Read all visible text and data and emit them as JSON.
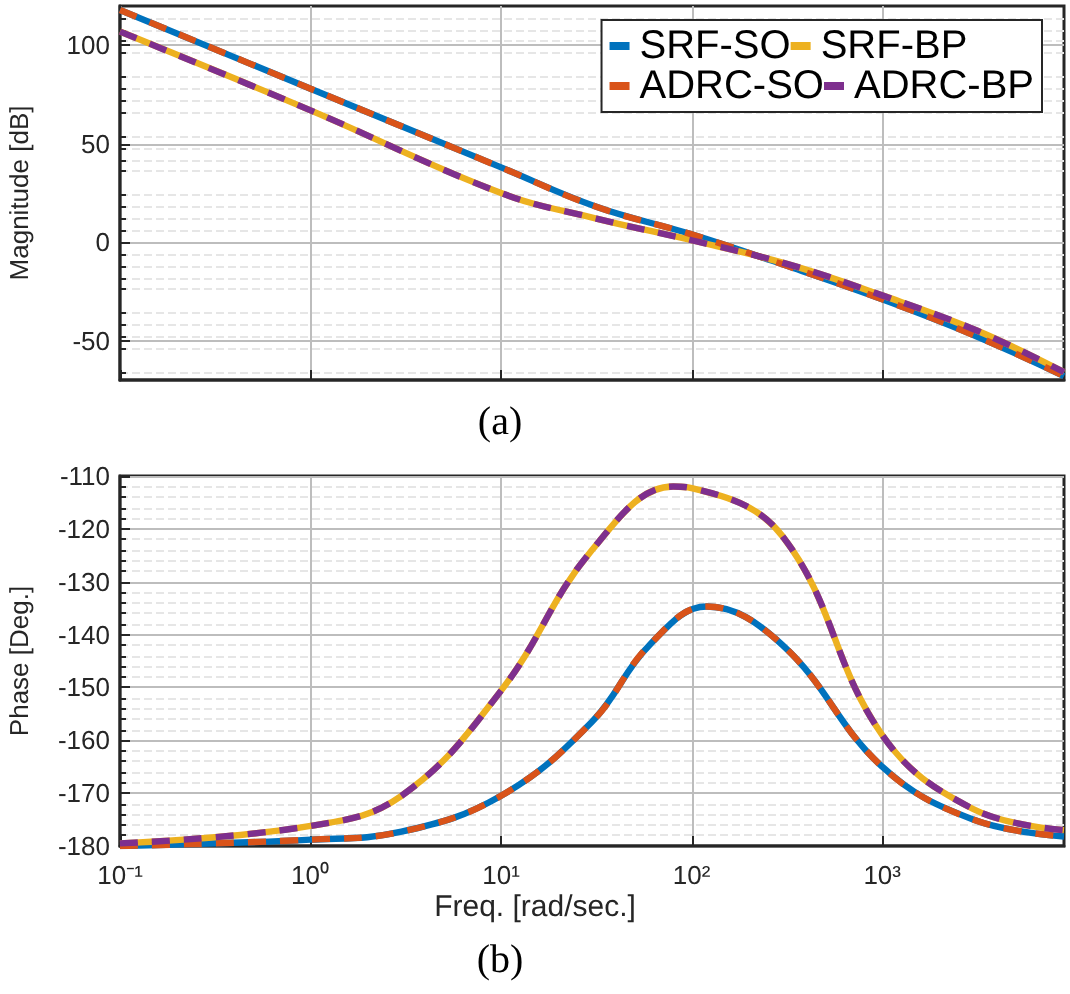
{
  "chart_data": [
    {
      "type": "line",
      "title": "(a)",
      "ylabel": "Magnitude [dB]",
      "xlim": [
        0.1,
        9000
      ],
      "ylim": [
        -70,
        120
      ],
      "xticks": [
        {
          "value": 0.1,
          "label": null
        },
        {
          "value": 1,
          "label": null
        },
        {
          "value": 10,
          "label": null
        },
        {
          "value": 100,
          "label": null
        },
        {
          "value": 1000,
          "label": null
        }
      ],
      "yticks": [
        -50,
        0,
        50,
        100
      ],
      "tick_labels": "y",
      "log": "x",
      "grid": true,
      "legend": "top right",
      "marker": "none",
      "x": [
        0.1,
        1,
        10,
        31.6,
        100,
        316,
        1000,
        3160,
        9000
      ],
      "series": [
        {
          "name": "SRF-SO",
          "color": "#0072bd",
          "line_style": "solid",
          "values": [
            118,
            78,
            38,
            18,
            4,
            -12,
            -29,
            -48,
            -68
          ]
        },
        {
          "name": "SRF-BP",
          "color": "#edb120",
          "line_style": "solid",
          "values": [
            107,
            67,
            25,
            12,
            1,
            -11,
            -27,
            -45,
            -66
          ]
        },
        {
          "name": "ADRC-SO",
          "color": "#d95319",
          "line_style": "dashed",
          "values": [
            118,
            78,
            38,
            18,
            4,
            -12,
            -29,
            -48,
            -68
          ]
        },
        {
          "name": "ADRC-BP",
          "color": "#7e2f8e",
          "line_style": "dashed",
          "values": [
            107,
            67,
            25,
            12,
            1,
            -11,
            -27,
            -45,
            -66
          ]
        }
      ]
    },
    {
      "type": "line",
      "title": "(b)",
      "xlabel": "Freq. [rad/sec.]",
      "ylabel": "Phase [Deg.]",
      "xlim": [
        0.1,
        9000
      ],
      "ylim": [
        -180,
        -110
      ],
      "xticks": [
        {
          "value": 0.1,
          "label": "10⁻¹"
        },
        {
          "value": 1,
          "label": "10⁰"
        },
        {
          "value": 10,
          "label": "10¹"
        },
        {
          "value": 100,
          "label": "10²"
        },
        {
          "value": 1000,
          "label": "10³"
        }
      ],
      "yticks": [
        -180,
        -170,
        -160,
        -150,
        -140,
        -130,
        -120,
        -110
      ],
      "log": "x",
      "grid": true,
      "marker": "none",
      "series": [
        {
          "color": "#0072bd",
          "line_style": "solid",
          "x": [
            0.1,
            1,
            3,
            10,
            30,
            60,
            120,
            300,
            1000,
            3000,
            9000
          ],
          "values": [
            -180,
            -178.8,
            -177.3,
            -170.5,
            -156.5,
            -142,
            -134.7,
            -142,
            -165,
            -175,
            -178.2
          ]
        },
        {
          "color": "#edb120",
          "line_style": "solid",
          "x": [
            0.1,
            1,
            3,
            10,
            30,
            80,
            100,
            300,
            1000,
            3000,
            9000
          ],
          "values": [
            -179.5,
            -176.2,
            -170.5,
            -150.6,
            -124,
            -112,
            -112.3,
            -121.4,
            -159,
            -173,
            -177
          ]
        },
        {
          "color": "#d95319",
          "line_style": "dashed",
          "x": [
            0.1,
            1,
            3,
            10,
            30,
            60,
            120,
            300,
            1000,
            3000,
            9000
          ],
          "values": [
            -180,
            -178.8,
            -177.3,
            -170.5,
            -156.5,
            -142,
            -134.7,
            -142,
            -165,
            -175,
            -178.2
          ]
        },
        {
          "color": "#7e2f8e",
          "line_style": "dashed",
          "x": [
            0.1,
            1,
            3,
            10,
            30,
            80,
            100,
            300,
            1000,
            3000,
            9000
          ],
          "values": [
            -179.5,
            -176.2,
            -170.5,
            -150.6,
            -124,
            -112,
            -112.3,
            -121.4,
            -159,
            -173,
            -177
          ]
        }
      ]
    }
  ]
}
